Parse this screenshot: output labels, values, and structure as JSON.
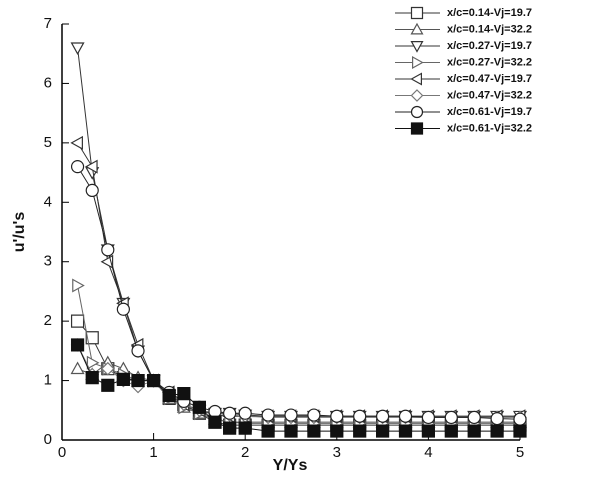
{
  "chart_data": {
    "type": "line",
    "xlabel": "Y/Ys",
    "ylabel": "u'/u's",
    "x": [
      0.17,
      0.33,
      0.5,
      0.67,
      0.83,
      1.0,
      1.17,
      1.33,
      1.5,
      1.67,
      1.83,
      2.0,
      2.25,
      2.5,
      2.75,
      3.0,
      3.25,
      3.5,
      3.75,
      4.0,
      4.25,
      4.5,
      4.75,
      5.0
    ],
    "series": [
      {
        "name": "x/c=0.14-Vj=19.7",
        "color": "#333333",
        "marker": "square",
        "values": [
          2.0,
          1.72,
          1.2,
          1.05,
          1.0,
          1.0,
          0.7,
          0.6,
          0.45,
          0.3,
          0.25,
          0.25,
          0.25,
          0.25,
          0.25,
          0.25,
          0.25,
          0.25,
          0.25,
          0.25,
          0.25,
          0.25,
          0.25,
          0.25
        ]
      },
      {
        "name": "x/c=0.14-Vj=32.2",
        "color": "#555555",
        "marker": "triangle-up",
        "values": [
          1.2,
          1.1,
          1.3,
          1.2,
          1.05,
          1.0,
          0.7,
          0.55,
          0.45,
          0.35,
          0.3,
          0.3,
          0.3,
          0.3,
          0.3,
          0.3,
          0.3,
          0.3,
          0.3,
          0.3,
          0.3,
          0.3,
          0.3,
          0.3
        ]
      },
      {
        "name": "x/c=0.27-Vj=19.7",
        "color": "#333333",
        "marker": "triangle-down",
        "values": [
          6.6,
          4.5,
          3.2,
          2.3,
          1.5,
          1.0,
          0.75,
          0.6,
          0.5,
          0.45,
          0.45,
          0.42,
          0.4,
          0.4,
          0.4,
          0.4,
          0.4,
          0.4,
          0.4,
          0.4,
          0.4,
          0.4,
          0.4,
          0.4
        ]
      },
      {
        "name": "x/c=0.27-Vj=32.2",
        "color": "#666666",
        "marker": "triangle-right",
        "values": [
          2.6,
          1.3,
          1.2,
          1.1,
          1.0,
          1.0,
          0.7,
          0.55,
          0.45,
          0.35,
          0.3,
          0.28,
          0.28,
          0.28,
          0.28,
          0.28,
          0.28,
          0.28,
          0.28,
          0.28,
          0.28,
          0.28,
          0.28,
          0.28
        ]
      },
      {
        "name": "x/c=0.47-Vj=19.7",
        "color": "#333333",
        "marker": "triangle-left",
        "values": [
          5.0,
          4.6,
          3.0,
          2.3,
          1.6,
          1.0,
          0.8,
          0.6,
          0.5,
          0.42,
          0.4,
          0.4,
          0.4,
          0.4,
          0.4,
          0.4,
          0.4,
          0.4,
          0.4,
          0.4,
          0.4,
          0.4,
          0.4,
          0.4
        ]
      },
      {
        "name": "x/c=0.47-Vj=32.2",
        "color": "#777777",
        "marker": "diamond",
        "values": [
          1.6,
          1.1,
          1.2,
          1.0,
          0.9,
          1.0,
          0.8,
          0.6,
          0.5,
          0.45,
          0.42,
          0.4,
          0.38,
          0.38,
          0.38,
          0.38,
          0.38,
          0.38,
          0.38,
          0.38,
          0.38,
          0.38,
          0.38,
          0.38
        ]
      },
      {
        "name": "x/c=0.61-Vj=19.7",
        "color": "#222222",
        "marker": "circle",
        "values": [
          4.6,
          4.2,
          3.2,
          2.2,
          1.5,
          1.0,
          0.8,
          0.65,
          0.55,
          0.48,
          0.45,
          0.45,
          0.42,
          0.42,
          0.42,
          0.4,
          0.4,
          0.4,
          0.4,
          0.38,
          0.38,
          0.38,
          0.36,
          0.35
        ]
      },
      {
        "name": "x/c=0.61-Vj=32.2",
        "color": "#111111",
        "marker": "filled-square",
        "values": [
          1.6,
          1.05,
          0.92,
          1.02,
          1.0,
          1.0,
          0.75,
          0.78,
          0.55,
          0.3,
          0.2,
          0.2,
          0.15,
          0.15,
          0.15,
          0.15,
          0.15,
          0.15,
          0.15,
          0.15,
          0.15,
          0.15,
          0.15,
          0.15
        ]
      }
    ],
    "xlim": [
      0,
      5
    ],
    "xticks": [
      0,
      1,
      2,
      3,
      4,
      5
    ],
    "ylim": [
      0,
      7
    ],
    "yticks": [
      0,
      1,
      2,
      3,
      4,
      5,
      6,
      7
    ],
    "grid": false,
    "legend": "top-right"
  }
}
